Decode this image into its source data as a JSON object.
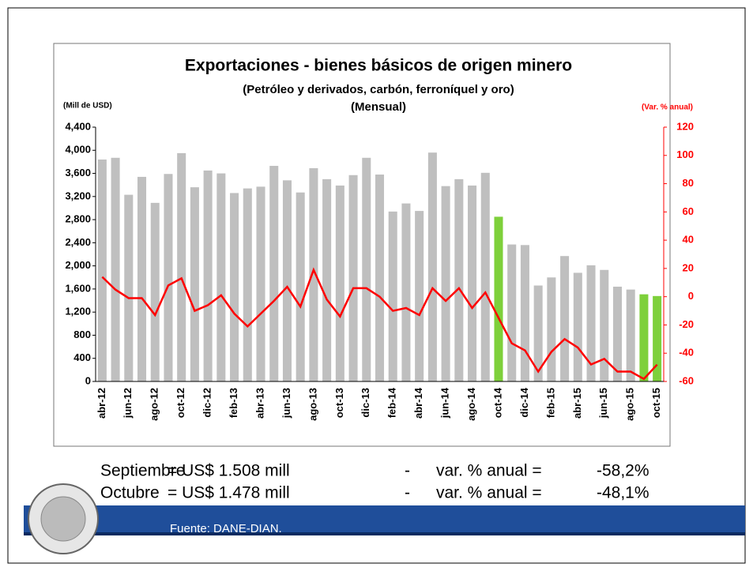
{
  "chart_data": {
    "type": "bar",
    "title": "Exportaciones - bienes básicos de origen minero",
    "subtitle": [
      "(Petróleo y derivados, carbón, ferroníquel y oro)",
      "(Mensual)"
    ],
    "ylabel": "(Mill de USD)",
    "y2label": "(Var. % anual)",
    "categories": [
      "abr-12",
      null,
      "jun-12",
      null,
      "ago-12",
      null,
      "oct-12",
      null,
      "dic-12",
      null,
      "feb-13",
      null,
      "abr-13",
      null,
      "jun-13",
      null,
      "ago-13",
      null,
      "oct-13",
      null,
      "dic-13",
      null,
      "feb-14",
      null,
      "abr-14",
      null,
      "jun-14",
      null,
      "ago-14",
      null,
      "oct-14",
      null,
      "dic-14",
      null,
      "feb-15",
      null,
      "abr-15",
      null,
      "jun-15",
      null,
      "ago-15",
      null,
      "oct-15"
    ],
    "series": [
      {
        "type": "bar",
        "colors": [
          "#bfbfbf",
          "#bfbfbf",
          "#bfbfbf",
          "#bfbfbf",
          "#bfbfbf",
          "#bfbfbf",
          "#bfbfbf",
          "#bfbfbf",
          "#bfbfbf",
          "#bfbfbf",
          "#bfbfbf",
          "#bfbfbf",
          "#bfbfbf",
          "#bfbfbf",
          "#bfbfbf",
          "#bfbfbf",
          "#bfbfbf",
          "#bfbfbf",
          "#bfbfbf",
          "#bfbfbf",
          "#bfbfbf",
          "#bfbfbf",
          "#bfbfbf",
          "#bfbfbf",
          "#bfbfbf",
          "#bfbfbf",
          "#bfbfbf",
          "#bfbfbf",
          "#bfbfbf",
          "#bfbfbf",
          "#7ed03b",
          "#bfbfbf",
          "#bfbfbf",
          "#bfbfbf",
          "#bfbfbf",
          "#bfbfbf",
          "#bfbfbf",
          "#bfbfbf",
          "#bfbfbf",
          "#bfbfbf",
          "#bfbfbf",
          "#7ed03b",
          "#7ed03b"
        ],
        "values": [
          3840,
          3870,
          3230,
          3540,
          3090,
          3590,
          3950,
          3360,
          3650,
          3600,
          3260,
          3340,
          3370,
          3730,
          3480,
          3270,
          3690,
          3500,
          3390,
          3570,
          3870,
          3580,
          2940,
          3080,
          2950,
          3960,
          3380,
          3500,
          3390,
          3610,
          2850,
          2370,
          2360,
          1660,
          1800,
          2170,
          1880,
          2010,
          1930,
          1640,
          1590,
          1508,
          1478
        ]
      },
      {
        "type": "line",
        "color": "#ff0000",
        "axis": "y2",
        "values": [
          14,
          5,
          -1,
          -1,
          -13,
          8,
          13,
          -10,
          -6,
          1,
          -12,
          -21,
          -12,
          -3,
          7,
          -7,
          19,
          -2,
          -14,
          6,
          6,
          0,
          -10,
          -8,
          -13,
          6,
          -3,
          6,
          -8,
          3,
          -15,
          -33,
          -38,
          -53,
          -39,
          -30,
          -36,
          -48,
          -44,
          -53,
          -53,
          -58.2,
          -48.1
        ]
      }
    ],
    "ylim": [
      0,
      4400
    ],
    "yticks": [
      0,
      {
        "value": 400,
        "label": "400"
      },
      {
        "value": 800,
        "label": "800"
      },
      {
        "value": 1200,
        "label": "1,200"
      },
      {
        "value": 1600,
        "label": "1,600"
      },
      {
        "value": 2000,
        "label": "2,000"
      },
      {
        "value": 2400,
        "label": "2,400"
      },
      {
        "value": 2800,
        "label": "2,800"
      },
      {
        "value": 3200,
        "label": "3,200"
      },
      {
        "value": 3600,
        "label": "3,600"
      },
      {
        "value": 4000,
        "label": "4,000"
      },
      {
        "value": 4400,
        "label": "4,400"
      }
    ],
    "y2lim": [
      -60,
      120
    ],
    "y2ticks": [
      -60,
      -40,
      -20,
      0,
      20,
      40,
      60,
      80,
      100,
      120
    ]
  },
  "notes": [
    [
      "Septiembre",
      "= US$ 1.508 mill",
      "-",
      "var. % anual  =",
      "-58,2%"
    ],
    [
      "Octubre",
      "= US$ 1.478 mill",
      "-",
      "var. % anual  =",
      "-48,1%"
    ]
  ],
  "footer": "Fuente: DANE-DIAN."
}
